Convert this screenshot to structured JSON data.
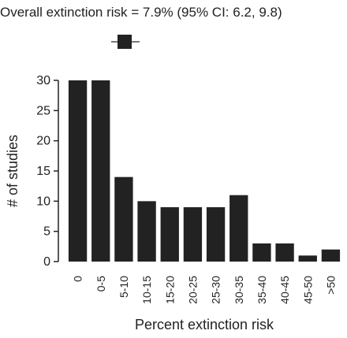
{
  "chart_data": {
    "type": "bar",
    "title": "Overall extinction risk = 7.9% (95% CI: 6.2, 9.8)",
    "summary_estimate": {
      "value": 7.9,
      "ci": [
        6.2,
        9.8
      ]
    },
    "categories": [
      "0",
      "0-5",
      "5-10",
      "10-15",
      "15-20",
      "20-25",
      "25-30",
      "30-35",
      "35-40",
      "40-45",
      "45-50",
      ">50"
    ],
    "values": [
      30,
      30,
      14,
      10,
      9,
      9,
      9,
      11,
      3,
      3,
      1,
      2
    ],
    "xlabel": "Percent extinction risk",
    "ylabel": "# of studies",
    "ylim": [
      0,
      30
    ],
    "yticks": [
      0,
      5,
      10,
      15,
      20,
      25,
      30
    ],
    "bar_color": "#222222",
    "grid": false
  }
}
